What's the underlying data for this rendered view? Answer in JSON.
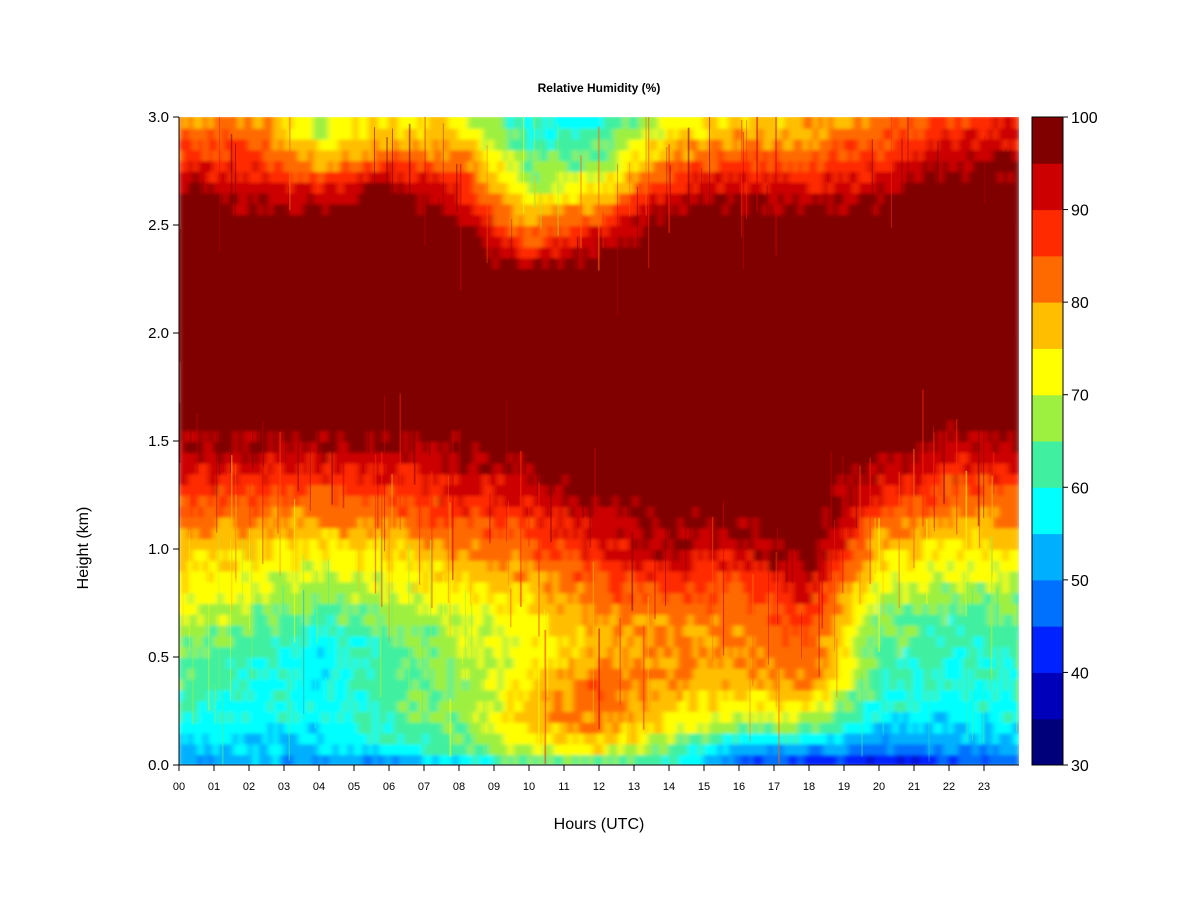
{
  "chart_data": {
    "type": "heatmap",
    "title": "Relative Humidity (%)",
    "xlabel": "Hours (UTC)",
    "ylabel": "Height (km)",
    "x_range": [
      0,
      24
    ],
    "y_range": [
      0.0,
      3.0
    ],
    "x_tick_labels": [
      "00",
      "01",
      "02",
      "03",
      "04",
      "05",
      "06",
      "07",
      "08",
      "09",
      "10",
      "11",
      "12",
      "13",
      "14",
      "15",
      "16",
      "17",
      "18",
      "19",
      "20",
      "21",
      "22",
      "23"
    ],
    "y_ticks": [
      0.0,
      0.5,
      1.0,
      1.5,
      2.0,
      2.5,
      3.0
    ],
    "y_tick_labels": [
      "0.0",
      "0.5",
      "1.0",
      "1.5",
      "2.0",
      "2.5",
      "3.0"
    ],
    "colorbar": {
      "min": 30,
      "max": 100,
      "step": 5,
      "tick_values": [
        30,
        40,
        50,
        60,
        70,
        80,
        90,
        100
      ],
      "tick_labels": [
        "30",
        "40",
        "50",
        "60",
        "70",
        "80",
        "90",
        "100"
      ],
      "colors": [
        "#00007a",
        "#0000bb",
        "#0022ff",
        "#0070ff",
        "#00b0ff",
        "#00ffff",
        "#40f0a0",
        "#9ef040",
        "#ffff00",
        "#ffbf00",
        "#ff6a00",
        "#ff2a00",
        "#cc0000",
        "#800000"
      ]
    },
    "height_km": [
      0.0,
      0.1,
      0.2,
      0.3,
      0.4,
      0.5,
      0.6,
      0.7,
      0.8,
      0.9,
      1.0,
      1.1,
      1.2,
      1.3,
      1.4,
      1.5,
      1.6,
      1.7,
      1.8,
      1.9,
      2.0,
      2.1,
      2.2,
      2.3,
      2.4,
      2.5,
      2.6,
      2.7,
      2.8,
      2.9,
      3.0
    ],
    "hours": [
      0,
      2,
      4,
      6,
      8,
      10,
      12,
      14,
      16,
      18,
      20,
      22,
      24
    ],
    "rh_values": [
      [
        50,
        54,
        60,
        62,
        64,
        66,
        68,
        71,
        73,
        75,
        77,
        80,
        85,
        90,
        93,
        95,
        100,
        100,
        100,
        100,
        100,
        100,
        100,
        100,
        100,
        100,
        100,
        95,
        88,
        85,
        80
      ],
      [
        52,
        56,
        58,
        59,
        60,
        62,
        64,
        67,
        70,
        73,
        76,
        80,
        84,
        88,
        92,
        95,
        100,
        100,
        100,
        100,
        100,
        100,
        100,
        100,
        100,
        100,
        96,
        92,
        88,
        85,
        80
      ],
      [
        50,
        55,
        57,
        58,
        57,
        56,
        60,
        63,
        67,
        71,
        74,
        78,
        82,
        87,
        91,
        96,
        100,
        100,
        100,
        100,
        100,
        100,
        100,
        100,
        100,
        100,
        95,
        88,
        78,
        72,
        68
      ],
      [
        48,
        58,
        62,
        63,
        64,
        63,
        64,
        66,
        70,
        73,
        76,
        80,
        84,
        88,
        92,
        96,
        100,
        100,
        100,
        100,
        100,
        100,
        100,
        100,
        100,
        100,
        100,
        95,
        85,
        78,
        75
      ],
      [
        55,
        63,
        66,
        66,
        67,
        68,
        69,
        70,
        74,
        77,
        81,
        85,
        88,
        91,
        93,
        96,
        100,
        100,
        100,
        100,
        100,
        100,
        100,
        100,
        100,
        98,
        93,
        88,
        83,
        77,
        72
      ],
      [
        65,
        72,
        77,
        76,
        74,
        72,
        73,
        74,
        76,
        80,
        83,
        86,
        90,
        93,
        96,
        100,
        100,
        100,
        100,
        100,
        100,
        100,
        100,
        96,
        88,
        80,
        74,
        68,
        64,
        60,
        58
      ],
      [
        62,
        76,
        82,
        85,
        84,
        80,
        78,
        80,
        84,
        86,
        90,
        92,
        95,
        98,
        100,
        100,
        100,
        100,
        100,
        100,
        100,
        100,
        100,
        100,
        95,
        88,
        80,
        72,
        66,
        62,
        58
      ],
      [
        58,
        68,
        74,
        77,
        80,
        80,
        80,
        82,
        86,
        90,
        94,
        96,
        98,
        100,
        100,
        100,
        100,
        100,
        100,
        100,
        100,
        100,
        100,
        100,
        100,
        100,
        95,
        88,
        82,
        75,
        70
      ],
      [
        45,
        55,
        68,
        74,
        78,
        80,
        80,
        82,
        85,
        88,
        92,
        95,
        98,
        100,
        100,
        100,
        100,
        100,
        100,
        100,
        100,
        100,
        100,
        100,
        100,
        100,
        96,
        92,
        85,
        80,
        74
      ],
      [
        42,
        55,
        68,
        76,
        82,
        84,
        86,
        88,
        90,
        95,
        100,
        100,
        100,
        100,
        100,
        100,
        100,
        100,
        100,
        100,
        100,
        100,
        100,
        100,
        100,
        100,
        95,
        90,
        84,
        80,
        78
      ],
      [
        38,
        50,
        56,
        60,
        62,
        63,
        64,
        67,
        70,
        74,
        78,
        82,
        88,
        92,
        96,
        100,
        100,
        100,
        100,
        100,
        100,
        100,
        100,
        100,
        100,
        100,
        96,
        92,
        88,
        84,
        82
      ],
      [
        40,
        52,
        56,
        58,
        59,
        60,
        61,
        63,
        66,
        70,
        74,
        78,
        82,
        86,
        90,
        94,
        98,
        100,
        100,
        100,
        100,
        100,
        100,
        100,
        100,
        100,
        100,
        98,
        95,
        90,
        86
      ],
      [
        48,
        54,
        58,
        59,
        60,
        61,
        62,
        64,
        67,
        71,
        75,
        79,
        83,
        87,
        91,
        95,
        100,
        100,
        100,
        100,
        100,
        100,
        100,
        100,
        100,
        100,
        100,
        98,
        95,
        92,
        88
      ]
    ]
  }
}
